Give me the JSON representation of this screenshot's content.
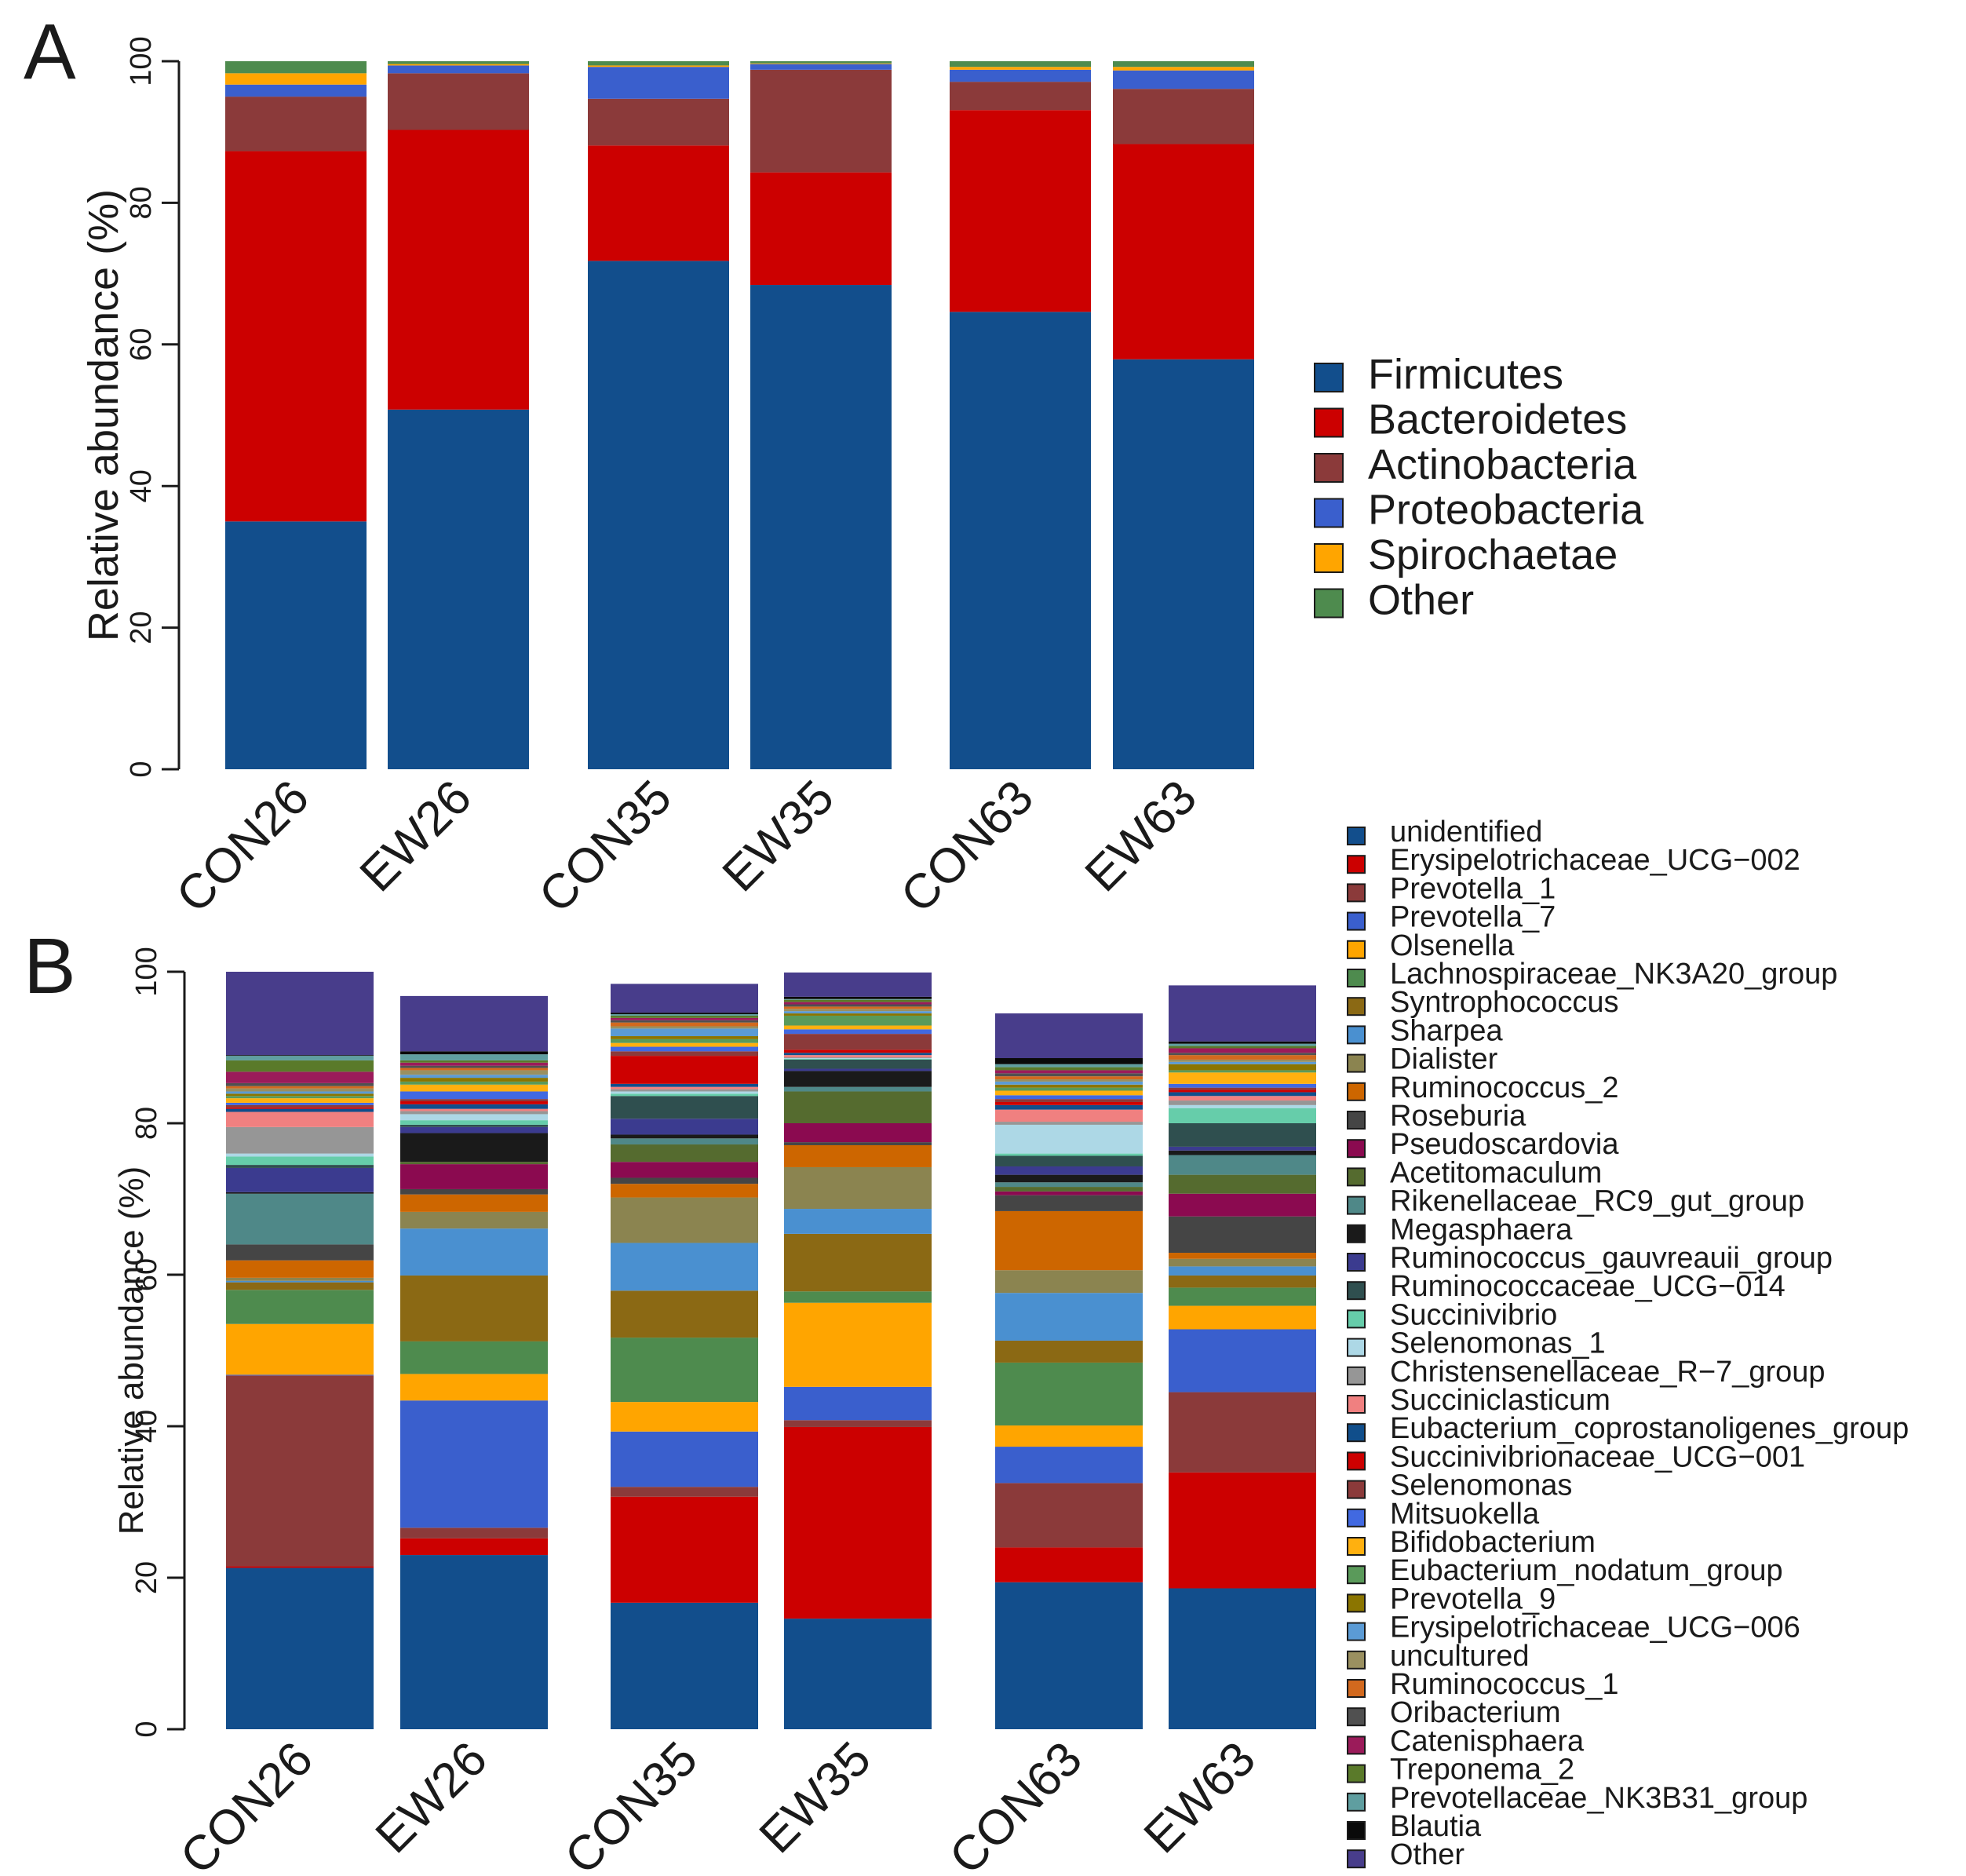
{
  "chart_data": [
    {
      "panel": "A",
      "type": "bar",
      "stacked": true,
      "ylabel": "Relative abundance (%)",
      "ylim": [
        0,
        100
      ],
      "yticks": [
        0,
        20,
        40,
        60,
        80,
        100
      ],
      "categories": [
        "CON26",
        "EW26",
        "CON35",
        "EW35",
        "CON63",
        "EW63"
      ],
      "legend_position": "right",
      "series": [
        {
          "name": "Firmicutes",
          "color": "#124e8c",
          "values": [
            35.0,
            50.8,
            71.8,
            68.4,
            64.6,
            57.9
          ]
        },
        {
          "name": "Bacteroidetes",
          "color": "#cc0000",
          "values": [
            52.3,
            39.5,
            16.3,
            15.9,
            28.5,
            30.4
          ]
        },
        {
          "name": "Actinobacteria",
          "color": "#8b3a3a",
          "values": [
            7.7,
            8.0,
            6.6,
            14.5,
            4.0,
            7.8
          ]
        },
        {
          "name": "Proteobacteria",
          "color": "#3a5fcd",
          "values": [
            1.7,
            1.1,
            4.5,
            0.8,
            1.7,
            2.6
          ]
        },
        {
          "name": "Spirochaetae",
          "color": "#ffa500",
          "values": [
            1.6,
            0.2,
            0.2,
            0.1,
            0.4,
            0.5
          ]
        },
        {
          "name": "Other",
          "color": "#4e8b4e",
          "values": [
            1.7,
            0.4,
            0.6,
            0.3,
            0.8,
            0.8
          ]
        }
      ]
    },
    {
      "panel": "B",
      "type": "bar",
      "stacked": true,
      "ylabel": "Relative abundance (%)",
      "ylim": [
        0,
        100
      ],
      "yticks": [
        0,
        20,
        40,
        60,
        80,
        100
      ],
      "categories": [
        "CON26",
        "EW26",
        "CON35",
        "EW35",
        "CON63",
        "EW63"
      ],
      "legend_position": "right",
      "series": [
        {
          "name": "unidentified",
          "color": "#124e8c",
          "values": [
            21.3,
            23.0,
            16.7,
            14.6,
            19.4,
            18.6
          ]
        },
        {
          "name": "Erysipelotrichaceae_UCG−002",
          "color": "#cc0000",
          "values": [
            0.2,
            2.2,
            14.0,
            25.3,
            4.6,
            15.3
          ]
        },
        {
          "name": "Prevotella_1",
          "color": "#8b3a3a",
          "values": [
            25.2,
            1.4,
            1.3,
            0.9,
            8.5,
            10.6
          ]
        },
        {
          "name": "Prevotella_7",
          "color": "#3a5fcd",
          "values": [
            0.1,
            16.8,
            7.3,
            4.4,
            4.8,
            8.3
          ]
        },
        {
          "name": "Olsenella",
          "color": "#ffa500",
          "values": [
            6.7,
            3.5,
            3.9,
            11.1,
            2.8,
            3.1
          ]
        },
        {
          "name": "Lachnospiraceae_NK3A20_group",
          "color": "#4e8b4e",
          "values": [
            4.5,
            4.3,
            8.5,
            1.5,
            8.3,
            2.4
          ]
        },
        {
          "name": "Syntrophococcus",
          "color": "#8b6914",
          "values": [
            1.0,
            8.7,
            6.2,
            7.6,
            2.9,
            1.6
          ]
        },
        {
          "name": "Sharpea",
          "color": "#4a90d0",
          "values": [
            0.2,
            6.2,
            6.3,
            3.3,
            6.3,
            1.2
          ]
        },
        {
          "name": "Dialister",
          "color": "#8b8450",
          "values": [
            0.4,
            2.2,
            6.0,
            5.5,
            3.0,
            1.0
          ]
        },
        {
          "name": "Ruminococcus_2",
          "color": "#cd6600",
          "values": [
            2.3,
            2.3,
            1.8,
            2.9,
            7.8,
            0.8
          ]
        },
        {
          "name": "Roseburia",
          "color": "#454545",
          "values": [
            2.1,
            0.7,
            0.8,
            0.4,
            2.1,
            4.8
          ]
        },
        {
          "name": "Pseudoscardovia",
          "color": "#8b0a50",
          "values": [
            0.0,
            3.3,
            2.1,
            2.5,
            0.5,
            3.0
          ]
        },
        {
          "name": "Acetitomaculum",
          "color": "#556b2f",
          "values": [
            0.0,
            0.3,
            2.3,
            4.2,
            0.6,
            2.5
          ]
        },
        {
          "name": "Rikenellaceae_RC9_gut_group",
          "color": "#4f8888",
          "values": [
            6.7,
            0.0,
            0.8,
            0.6,
            0.6,
            2.6
          ]
        },
        {
          "name": "Megasphaera",
          "color": "#1a1a1a",
          "values": [
            0.2,
            3.8,
            0.5,
            2.1,
            1.0,
            0.6
          ]
        },
        {
          "name": "Ruminococcus_gauvreauii_group",
          "color": "#3b3b8f",
          "values": [
            3.2,
            0.8,
            2.1,
            0.3,
            1.1,
            0.5
          ]
        },
        {
          "name": "Ruminococcaceae_UCG−014",
          "color": "#2f4f4f",
          "values": [
            0.4,
            0.3,
            3.0,
            1.2,
            1.4,
            3.1
          ]
        },
        {
          "name": "Succinivibrio",
          "color": "#66cdaa",
          "values": [
            1.1,
            0.6,
            0.3,
            0.1,
            0.3,
            2.0
          ]
        },
        {
          "name": "Selenomonas_1",
          "color": "#add8e6",
          "values": [
            0.4,
            0.8,
            0.3,
            0.1,
            3.8,
            0.4
          ]
        },
        {
          "name": "Christensenellaceae_R−7_group",
          "color": "#969696",
          "values": [
            3.5,
            0.4,
            0.3,
            0.1,
            0.4,
            0.6
          ]
        },
        {
          "name": "Succiniclasticum",
          "color": "#f08080",
          "values": [
            2.0,
            0.3,
            0.3,
            0.3,
            1.6,
            0.6
          ]
        },
        {
          "name": "Eubacterium_coprostanoligenes_group",
          "color": "#104e8b",
          "values": [
            0.4,
            0.6,
            0.4,
            0.3,
            0.6,
            0.5
          ]
        },
        {
          "name": "Succinivibrionaceae_UCG−001",
          "color": "#cd0000",
          "values": [
            0.2,
            0.4,
            3.7,
            0.4,
            0.4,
            0.3
          ]
        },
        {
          "name": "Selenomonas",
          "color": "#8b3a3a",
          "values": [
            0.3,
            0.3,
            0.6,
            2.1,
            0.4,
            0.3
          ]
        },
        {
          "name": "Mitsuokella",
          "color": "#4169e1",
          "values": [
            0.3,
            1.0,
            0.6,
            0.6,
            0.5,
            0.5
          ]
        },
        {
          "name": "Bifidobacterium",
          "color": "#ffb00f",
          "values": [
            0.6,
            0.9,
            0.5,
            0.5,
            0.6,
            1.5
          ]
        },
        {
          "name": "Eubacterium_nodatum_group",
          "color": "#5a9a5a",
          "values": [
            0.3,
            0.4,
            0.5,
            1.3,
            0.4,
            0.3
          ]
        },
        {
          "name": "Prevotella_9",
          "color": "#8b7500",
          "values": [
            0.3,
            0.5,
            0.4,
            0.3,
            0.4,
            0.8
          ]
        },
        {
          "name": "Erysipelotrichaceae_UCG−006",
          "color": "#5b9bd5",
          "values": [
            0.3,
            0.4,
            1.0,
            0.3,
            0.4,
            0.3
          ]
        },
        {
          "name": "uncultured",
          "color": "#9a9060",
          "values": [
            0.4,
            0.6,
            0.3,
            0.3,
            0.3,
            0.3
          ]
        },
        {
          "name": "Ruminococcus_1",
          "color": "#d2691e",
          "values": [
            0.3,
            0.3,
            0.5,
            0.3,
            0.4,
            0.6
          ]
        },
        {
          "name": "Oribacterium",
          "color": "#505050",
          "values": [
            0.4,
            0.3,
            0.3,
            0.3,
            0.4,
            0.3
          ]
        },
        {
          "name": "Catenisphaera",
          "color": "#9b1b5a",
          "values": [
            1.5,
            0.4,
            0.3,
            0.3,
            0.4,
            0.6
          ]
        },
        {
          "name": "Treponema_2",
          "color": "#5a7a2a",
          "values": [
            1.5,
            0.3,
            0.3,
            0.3,
            0.4,
            0.3
          ]
        },
        {
          "name": "Prevotellaceae_NK3B31_group",
          "color": "#5f9ea0",
          "values": [
            0.6,
            0.8,
            0.2,
            0.1,
            0.4,
            0.3
          ]
        },
        {
          "name": "Blautia",
          "color": "#0a0a0a",
          "values": [
            0.1,
            0.4,
            0.2,
            0.3,
            0.8,
            0.3
          ]
        },
        {
          "name": "Other",
          "color": "#483d8b",
          "values": [
            11.5,
            7.3,
            3.8,
            3.2,
            5.9,
            7.4
          ]
        }
      ]
    }
  ],
  "panel_labels": {
    "a": "A",
    "b": "B"
  }
}
